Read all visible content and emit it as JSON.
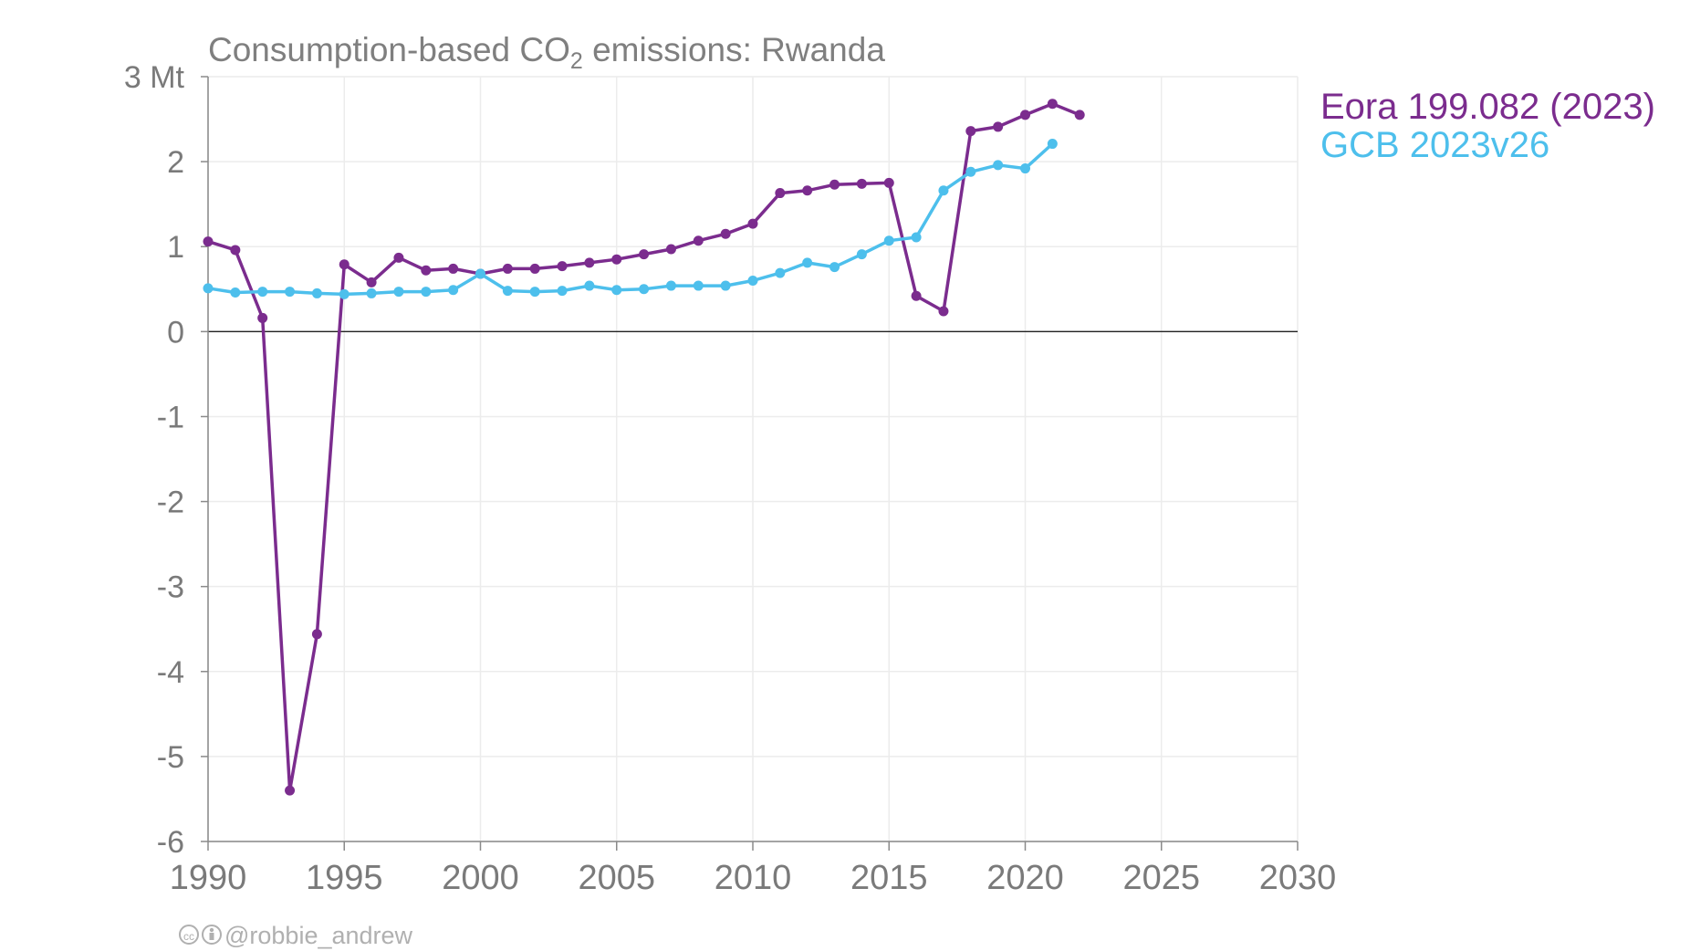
{
  "chart_data": {
    "type": "line",
    "title": "Consumption-based CO",
    "title_subscript": "2",
    "title_suffix": " emissions: Rwanda",
    "y_unit": "Mt",
    "ylim": [
      -6,
      3
    ],
    "xlim": [
      1990,
      2030
    ],
    "y_ticks": [
      3,
      2,
      1,
      0,
      -1,
      -2,
      -3,
      -4,
      -5,
      -6
    ],
    "y_tick_labels": [
      "3 Mt",
      "2",
      "1",
      "0",
      "-1",
      "-2",
      "-3",
      "-4",
      "-5",
      "-6"
    ],
    "x_ticks": [
      1990,
      1995,
      2000,
      2005,
      2010,
      2015,
      2020,
      2025,
      2030
    ],
    "x_tick_labels": [
      "1990",
      "1995",
      "2000",
      "2005",
      "2010",
      "2015",
      "2020",
      "2025",
      "2030"
    ],
    "grid": true,
    "legend_position": "top-right",
    "series": [
      {
        "name": "Eora 199.082 (2023)",
        "color": "#7b2c8e",
        "x": [
          1990,
          1991,
          1992,
          1993,
          1994,
          1995,
          1996,
          1997,
          1998,
          1999,
          2000,
          2001,
          2002,
          2003,
          2004,
          2005,
          2006,
          2007,
          2008,
          2009,
          2010,
          2011,
          2012,
          2013,
          2014,
          2015,
          2016,
          2017,
          2018,
          2019,
          2020,
          2021,
          2022
        ],
        "y": [
          1.06,
          0.96,
          0.16,
          -5.4,
          -3.56,
          0.79,
          0.58,
          0.87,
          0.72,
          0.74,
          0.68,
          0.74,
          0.74,
          0.77,
          0.81,
          0.85,
          0.91,
          0.97,
          1.07,
          1.15,
          1.27,
          1.63,
          1.66,
          1.73,
          1.74,
          1.75,
          0.42,
          0.24,
          2.36,
          2.41,
          2.55,
          2.68,
          2.55
        ]
      },
      {
        "name": "GCB 2023v26",
        "color": "#4dbfec",
        "x": [
          1990,
          1991,
          1992,
          1993,
          1994,
          1995,
          1996,
          1997,
          1998,
          1999,
          2000,
          2001,
          2002,
          2003,
          2004,
          2005,
          2006,
          2007,
          2008,
          2009,
          2010,
          2011,
          2012,
          2013,
          2014,
          2015,
          2016,
          2017,
          2018,
          2019,
          2020,
          2021
        ],
        "y": [
          0.51,
          0.46,
          0.47,
          0.47,
          0.45,
          0.44,
          0.45,
          0.47,
          0.47,
          0.49,
          0.68,
          0.48,
          0.47,
          0.48,
          0.54,
          0.49,
          0.5,
          0.54,
          0.54,
          0.54,
          0.6,
          0.69,
          0.81,
          0.76,
          0.91,
          1.07,
          1.11,
          1.66,
          1.88,
          1.96,
          1.92,
          2.21
        ]
      }
    ]
  },
  "credit": "@robbie_andrew"
}
